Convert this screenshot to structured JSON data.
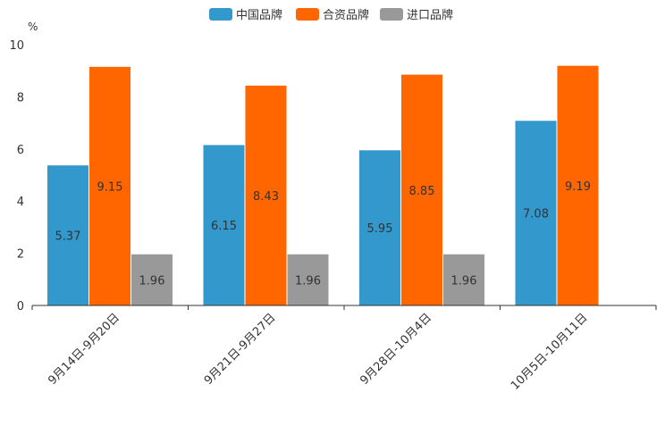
{
  "chart_data": {
    "type": "bar",
    "title": "",
    "xlabel": "",
    "ylabel": "%",
    "ylim": [
      0,
      10
    ],
    "yticks": [
      0,
      2,
      4,
      6,
      8,
      10
    ],
    "categories": [
      "9月14日-9月20日",
      "9月21日-9月27日",
      "9月28日-10月4日",
      "10月5日-10月11日"
    ],
    "series": [
      {
        "name": "中国品牌",
        "color": "#3399cc",
        "values": [
          5.37,
          6.15,
          5.95,
          7.08
        ],
        "labels": [
          "5.37",
          "6.15",
          "5.95",
          "7.08"
        ]
      },
      {
        "name": "合资品牌",
        "color": "#ff6600",
        "values": [
          9.15,
          8.43,
          8.85,
          9.19
        ],
        "labels": [
          "9.15",
          "8.43",
          "8.85",
          "9.19"
        ]
      },
      {
        "name": "进口品牌",
        "color": "#999999",
        "values": [
          1.96,
          1.96,
          1.96,
          null
        ],
        "labels": [
          "1.96",
          "1.96",
          "1.96",
          ""
        ]
      }
    ],
    "legend_position": "top-center",
    "grid": false
  }
}
